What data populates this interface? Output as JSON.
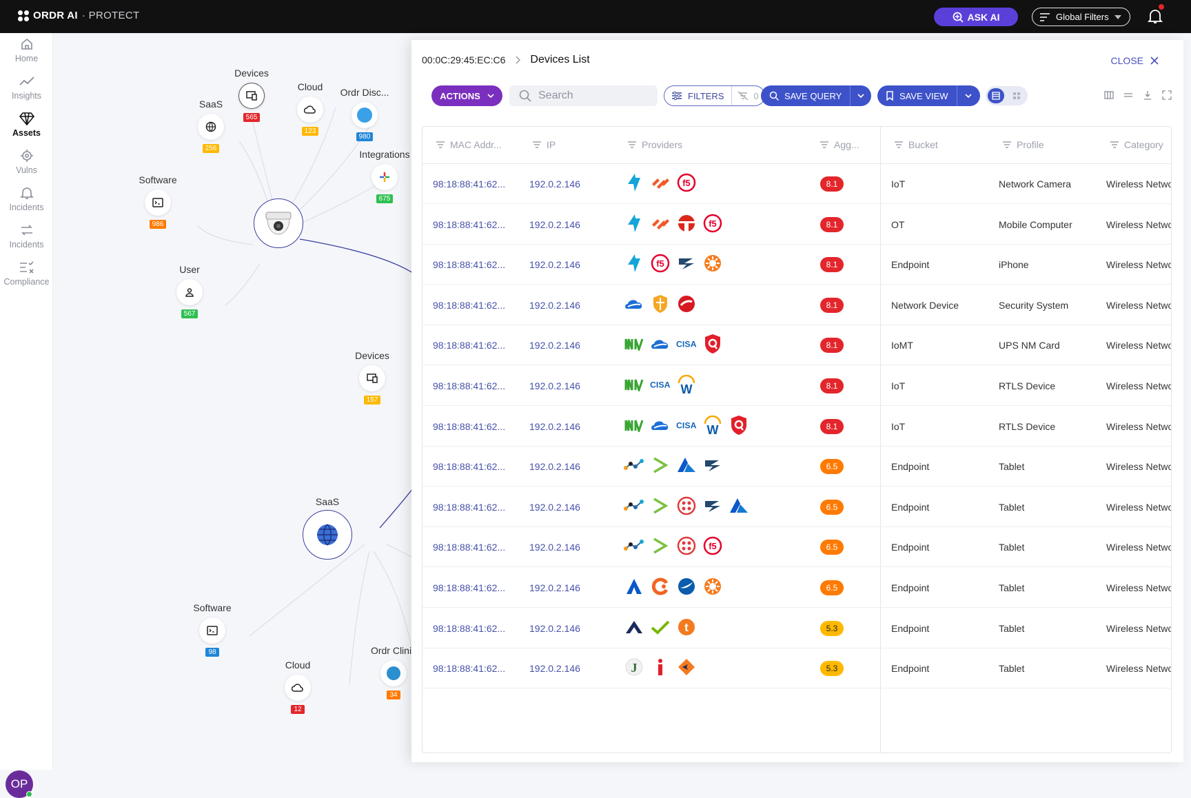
{
  "app": {
    "logo_bold": "ORDR AI",
    "logo_light": "· PROTECT",
    "ask_ai": "ASK AI",
    "global_filters": "Global Filters",
    "avatar_initials": "OP"
  },
  "nav": [
    {
      "label": "Home",
      "icon": "home-icon"
    },
    {
      "label": "Insights",
      "icon": "trend-icon"
    },
    {
      "label": "Assets",
      "icon": "diamond-icon"
    },
    {
      "label": "Vulns",
      "icon": "gear-icon"
    },
    {
      "label": "Incidents",
      "icon": "bell-icon"
    },
    {
      "label": "Incidents",
      "icon": "swap-icon"
    },
    {
      "label": "Compliance",
      "icon": "checklist-icon"
    }
  ],
  "graph": {
    "devices_top": {
      "label": "Devices",
      "count": "565"
    },
    "cloud_top": {
      "label": "Cloud",
      "count": "123"
    },
    "saas_top": {
      "label": "SaaS",
      "count": "256"
    },
    "ordr_disc": {
      "label": "Ordr Disc...",
      "count": "980"
    },
    "integrations": {
      "label": "Integrations",
      "count": "675"
    },
    "software_top": {
      "label": "Software",
      "count": "986"
    },
    "user": {
      "label": "User",
      "count": "567"
    },
    "devices_mid": {
      "label": "Devices",
      "count": "157"
    },
    "saas_hub": {
      "label": "SaaS"
    },
    "software_bot": {
      "label": "Software",
      "count": "98"
    },
    "cloud_bot": {
      "label": "Cloud",
      "count": "12"
    },
    "ordr_clinic": {
      "label": "Ordr Clinic",
      "count": "34"
    }
  },
  "panel": {
    "breadcrumb": "00:0C:29:45:EC:C6",
    "title": "Devices List",
    "close": "CLOSE",
    "actions": "ACTIONS",
    "search_placeholder": "Search",
    "filters": "FILTERS",
    "filter_count": "0",
    "save_query": "SAVE QUERY",
    "save_view": "SAVE VIEW"
  },
  "columns": [
    "MAC Addr...",
    "IP",
    "Providers",
    "Agg...",
    "Bucket",
    "Profile",
    "Category"
  ],
  "colors": {
    "score_high": "#e3262b",
    "score_med": "#ff7a00",
    "score_low": "#ffb800",
    "accent": "#3d52c9",
    "actions": "#7b2fbe"
  },
  "rows": [
    {
      "mac": "98:18:88:41:62...",
      "ip": "192.0.2.146",
      "providers": [
        "arrow-icon",
        "palo-icon",
        "f5-icon"
      ],
      "score": "8.1",
      "bucket": "IoT",
      "profile": "Network Camera",
      "category": "Wireless Network"
    },
    {
      "mac": "98:18:88:41:62...",
      "ip": "192.0.2.146",
      "providers": [
        "arrow-icon",
        "palo-icon",
        "fortinet-icon",
        "f5-icon"
      ],
      "score": "8.1",
      "bucket": "OT",
      "profile": "Mobile Computer",
      "category": "Wireless Network"
    },
    {
      "mac": "98:18:88:41:62...",
      "ip": "192.0.2.146",
      "providers": [
        "arrow-icon",
        "f5-icon",
        "zscaler-icon",
        "sun-icon"
      ],
      "score": "8.1",
      "bucket": "Endpoint",
      "profile": "iPhone",
      "category": "Wireless Network"
    },
    {
      "mac": "98:18:88:41:62...",
      "ip": "192.0.2.146",
      "providers": [
        "cloud-icon",
        "shield-icon",
        "trend-icon"
      ],
      "score": "8.1",
      "bucket": "Network Device",
      "profile": "Security System",
      "category": "Wireless Network"
    },
    {
      "mac": "98:18:88:41:62...",
      "ip": "192.0.2.146",
      "providers": [
        "m-icon",
        "cloud-icon",
        "cisa-icon",
        "qualys-icon"
      ],
      "score": "8.1",
      "bucket": "IoMT",
      "profile": "UPS NM Card",
      "category": "Wireless Network"
    },
    {
      "mac": "98:18:88:41:62...",
      "ip": "192.0.2.146",
      "providers": [
        "m-icon",
        "cisa-icon",
        "w-icon"
      ],
      "score": "8.1",
      "bucket": "IoT",
      "profile": "RTLS Device",
      "category": "Wireless Network"
    },
    {
      "mac": "98:18:88:41:62...",
      "ip": "192.0.2.146",
      "providers": [
        "m-icon",
        "cloud-icon",
        "cisa-icon",
        "w-icon",
        "qualys-icon"
      ],
      "score": "8.1",
      "bucket": "IoT",
      "profile": "RTLS Device",
      "category": "Wireless Network"
    },
    {
      "mac": "98:18:88:41:62...",
      "ip": "192.0.2.146",
      "providers": [
        "nodes-icon",
        "chevron-icon",
        "azure-icon",
        "zscaler-icon"
      ],
      "score": "6.5",
      "bucket": "Endpoint",
      "profile": "Tablet",
      "category": "Wireless Network"
    },
    {
      "mac": "98:18:88:41:62...",
      "ip": "192.0.2.146",
      "providers": [
        "nodes-icon",
        "chevron-icon",
        "dots-icon",
        "zscaler-icon",
        "azure-icon"
      ],
      "score": "6.5",
      "bucket": "Endpoint",
      "profile": "Tablet",
      "category": "Wireless Network"
    },
    {
      "mac": "98:18:88:41:62...",
      "ip": "192.0.2.146",
      "providers": [
        "nodes-icon",
        "chevron-icon",
        "dots-icon",
        "f5-icon"
      ],
      "score": "6.5",
      "bucket": "Endpoint",
      "profile": "Tablet",
      "category": "Wireless Network"
    },
    {
      "mac": "98:18:88:41:62...",
      "ip": "192.0.2.146",
      "providers": [
        "a-icon",
        "c-icon",
        "swoosh-icon",
        "sun-icon"
      ],
      "score": "6.5",
      "bucket": "Endpoint",
      "profile": "Tablet",
      "category": "Wireless Network"
    },
    {
      "mac": "98:18:88:41:62...",
      "ip": "192.0.2.146",
      "providers": [
        "arista-icon",
        "check-icon",
        "t-icon"
      ],
      "score": "5.3",
      "bucket": "Endpoint",
      "profile": "Tablet",
      "category": "Wireless Network"
    },
    {
      "mac": "98:18:88:41:62...",
      "ip": "192.0.2.146",
      "providers": [
        "j-icon",
        "i-icon",
        "diamond-arrow-icon"
      ],
      "score": "5.3",
      "bucket": "Endpoint",
      "profile": "Tablet",
      "category": "Wireless Network"
    }
  ]
}
